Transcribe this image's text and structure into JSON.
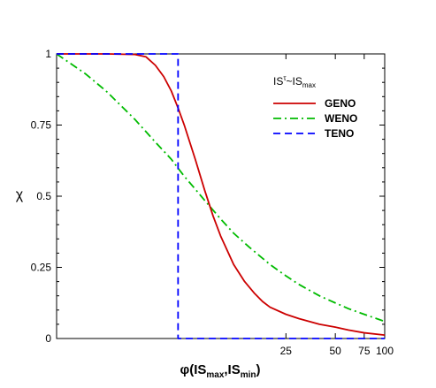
{
  "chart_data": {
    "type": "line",
    "x_scale": "log",
    "xlim": [
      1,
      100
    ],
    "ylim": [
      0,
      1
    ],
    "xlabel": {
      "main": "φ(IS",
      "sub1": "max",
      "mid": ",IS",
      "sub2": "min",
      "end": ")"
    },
    "ylabel": "χ",
    "x_ticks": [
      {
        "value": 25,
        "label": "25"
      },
      {
        "value": 50,
        "label": "50"
      },
      {
        "value": 75,
        "label": "75"
      },
      {
        "value": 100,
        "label": "100"
      }
    ],
    "y_ticks": [
      {
        "value": 0,
        "label": "0"
      },
      {
        "value": 0.25,
        "label": "0.25"
      },
      {
        "value": 0.5,
        "label": "0.5"
      },
      {
        "value": 0.75,
        "label": "0.75"
      },
      {
        "value": 1,
        "label": "1"
      }
    ],
    "legend": {
      "title": {
        "a": "IS",
        "a_sup": "τ",
        "b": "~IS",
        "b_sub": "max"
      },
      "position": "upper-right"
    },
    "series": [
      {
        "name": "GENO",
        "color": "#cc0000",
        "style": "solid",
        "x": [
          1,
          2,
          3,
          3.5,
          4,
          4.5,
          5,
          5.5,
          6,
          7,
          8,
          9,
          10,
          12,
          14,
          16,
          18,
          20,
          25,
          30,
          40,
          50,
          60,
          75,
          100
        ],
        "y": [
          1,
          1,
          0.998,
          0.99,
          0.96,
          0.92,
          0.87,
          0.81,
          0.75,
          0.63,
          0.52,
          0.43,
          0.36,
          0.26,
          0.2,
          0.16,
          0.13,
          0.11,
          0.085,
          0.07,
          0.05,
          0.04,
          0.03,
          0.02,
          0.012
        ]
      },
      {
        "name": "WENO",
        "color": "#00bb00",
        "style": "dashdot",
        "x": [
          1,
          1.5,
          2,
          3,
          4,
          5,
          6,
          7,
          8,
          10,
          12,
          15,
          20,
          25,
          30,
          40,
          50,
          60,
          75,
          100
        ],
        "y": [
          1,
          0.93,
          0.87,
          0.77,
          0.69,
          0.63,
          0.57,
          0.525,
          0.485,
          0.42,
          0.37,
          0.32,
          0.26,
          0.22,
          0.19,
          0.15,
          0.125,
          0.105,
          0.085,
          0.06
        ]
      },
      {
        "name": "TENO",
        "color": "#0000ff",
        "style": "dashed",
        "x": [
          1,
          5.5,
          5.5,
          100
        ],
        "y": [
          1,
          1,
          0,
          0
        ]
      }
    ]
  }
}
